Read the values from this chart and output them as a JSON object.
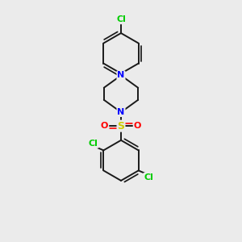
{
  "background_color": "#ebebeb",
  "bond_color": "#1a1a1a",
  "N_color": "#0000ff",
  "S_color": "#cccc00",
  "O_color": "#ff0000",
  "Cl_color": "#00cc00",
  "bond_width": 1.4,
  "font_size_atom": 8,
  "fig_width": 3.0,
  "fig_height": 3.0,
  "xlim": [
    0,
    10
  ],
  "ylim": [
    0,
    10
  ]
}
